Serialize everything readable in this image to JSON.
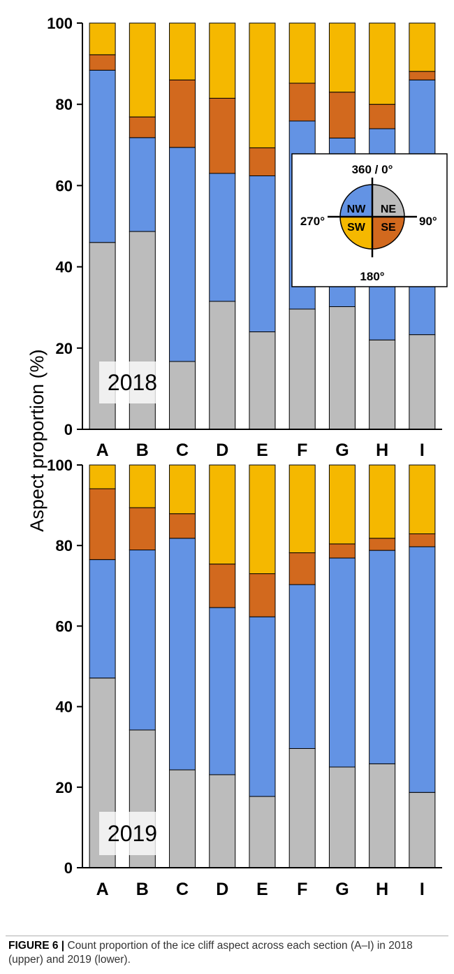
{
  "chart_data": [
    {
      "type": "bar",
      "stacked": true,
      "panel_label": "2018",
      "ylabel": "Aspect proportion (%)",
      "ylim": [
        0,
        100
      ],
      "yticks": [
        0,
        20,
        40,
        60,
        80,
        100
      ],
      "categories": [
        "A",
        "B",
        "C",
        "D",
        "E",
        "F",
        "G",
        "H",
        "I"
      ],
      "series": [
        {
          "name": "NE",
          "color": "#bcbcbc",
          "values": [
            46,
            48.7,
            16.7,
            31.5,
            24,
            29.6,
            30.2,
            22,
            23.3
          ]
        },
        {
          "name": "NW",
          "color": "#6393e4",
          "values": [
            42.4,
            23.1,
            52.7,
            31.5,
            38.4,
            46.3,
            41.5,
            52,
            62.7
          ]
        },
        {
          "name": "SE",
          "color": "#d2691e",
          "values": [
            3.8,
            5.1,
            16.6,
            18.5,
            6.9,
            9.3,
            11.3,
            6,
            2.1
          ]
        },
        {
          "name": "SW",
          "color": "#f5b800",
          "values": [
            7.8,
            23.1,
            14,
            18.5,
            30.7,
            14.8,
            17,
            20,
            11.9
          ]
        }
      ]
    },
    {
      "type": "bar",
      "stacked": true,
      "panel_label": "2019",
      "ylabel": "Aspect proportion (%)",
      "ylim": [
        0,
        100
      ],
      "yticks": [
        0,
        20,
        40,
        60,
        80,
        100
      ],
      "categories": [
        "A",
        "B",
        "C",
        "D",
        "E",
        "F",
        "G",
        "H",
        "I"
      ],
      "series": [
        {
          "name": "NE",
          "color": "#bcbcbc",
          "values": [
            47.1,
            34.2,
            24.3,
            23.1,
            17.7,
            29.6,
            25,
            25.8,
            18.7
          ]
        },
        {
          "name": "NW",
          "color": "#6393e4",
          "values": [
            29.4,
            44.7,
            57.5,
            41.5,
            44.6,
            40.7,
            51.9,
            53,
            61
          ]
        },
        {
          "name": "SE",
          "color": "#d2691e",
          "values": [
            17.6,
            10.5,
            6.1,
            10.8,
            10.7,
            7.9,
            3.5,
            3,
            3.2
          ]
        },
        {
          "name": "SW",
          "color": "#f5b800",
          "values": [
            5.9,
            10.6,
            12.1,
            24.6,
            27,
            21.8,
            19.6,
            18.2,
            17.1
          ]
        }
      ]
    }
  ],
  "legend": {
    "top": "360 / 0°",
    "bottom": "180°",
    "left": "270°",
    "right": "90°",
    "quadrants": {
      "NW": {
        "label": "NW",
        "color": "#6393e4"
      },
      "NE": {
        "label": "NE",
        "color": "#bcbcbc"
      },
      "SW": {
        "label": "SW",
        "color": "#f5b800"
      },
      "SE": {
        "label": "SE",
        "color": "#d2691e"
      }
    }
  },
  "caption": {
    "label": "FIGURE 6 |",
    "text": " Count proportion of the ice cliff aspect across each section (A–I) in 2018 (upper) and 2019 (lower)."
  }
}
